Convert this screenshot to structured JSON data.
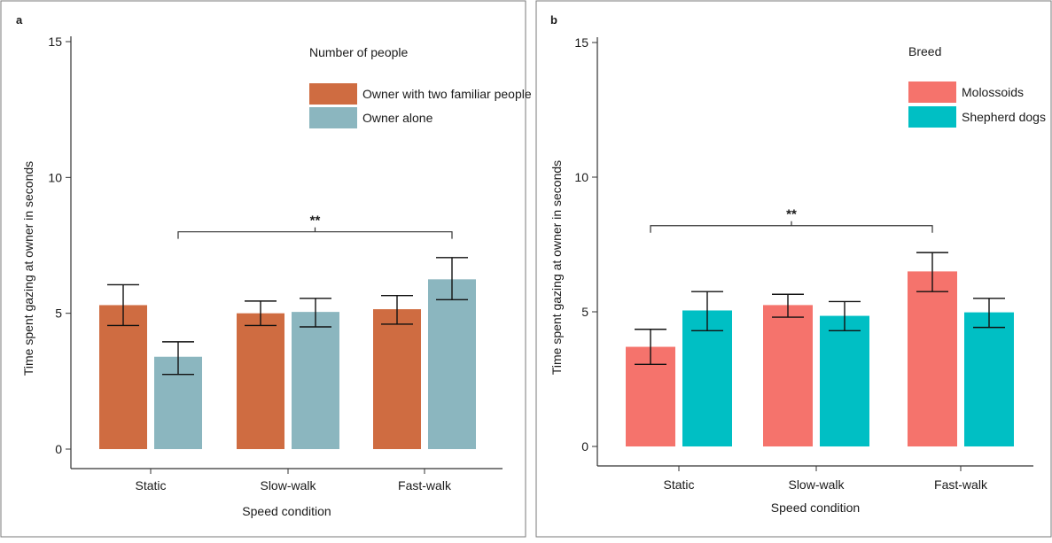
{
  "chart_data": [
    {
      "type": "bar",
      "panel_label": "a",
      "categories": [
        "Static",
        "Slow-walk",
        "Fast-walk"
      ],
      "xlabel": "Speed condition",
      "ylabel": "Time spent gazing at owner in seconds",
      "ylim": [
        0,
        15
      ],
      "yticks": [
        0,
        5,
        10,
        15
      ],
      "legend_title": "Number of people",
      "legend_position": "top-right",
      "series": [
        {
          "name": "Owner with two familiar people",
          "color": "#cf6c41",
          "values": [
            5.3,
            5.0,
            5.15
          ],
          "error_low": [
            4.55,
            4.55,
            4.6
          ],
          "error_high": [
            6.05,
            5.45,
            5.65
          ]
        },
        {
          "name": "Owner alone",
          "color": "#8bb6bf",
          "values": [
            3.4,
            5.05,
            6.25
          ],
          "error_low": [
            2.75,
            4.5,
            5.5
          ],
          "error_high": [
            3.95,
            5.55,
            7.05
          ]
        }
      ],
      "significance": [
        {
          "label": "**",
          "from": {
            "category": 0,
            "series": 1
          },
          "to": {
            "category": 2,
            "series": 1
          },
          "y": 8.0
        }
      ]
    },
    {
      "type": "bar",
      "panel_label": "b",
      "categories": [
        "Static",
        "Slow-walk",
        "Fast-walk"
      ],
      "xlabel": "Speed condition",
      "ylabel": "Time spent gazing at owner in seconds",
      "ylim": [
        0,
        15
      ],
      "yticks": [
        0,
        5,
        10,
        15
      ],
      "legend_title": "Breed",
      "legend_position": "top-right",
      "series": [
        {
          "name": "Molossoids",
          "color": "#f5736c",
          "values": [
            3.7,
            5.25,
            6.5
          ],
          "error_low": [
            3.05,
            4.8,
            5.75
          ],
          "error_high": [
            4.35,
            5.65,
            7.2
          ]
        },
        {
          "name": "Shepherd dogs",
          "color": "#00bfc4",
          "values": [
            5.05,
            4.85,
            4.98
          ],
          "error_low": [
            4.3,
            4.3,
            4.42
          ],
          "error_high": [
            5.75,
            5.38,
            5.5
          ]
        }
      ],
      "significance": [
        {
          "label": "**",
          "from": {
            "category": 0,
            "series": 0
          },
          "to": {
            "category": 2,
            "series": 0
          },
          "y": 8.2
        }
      ]
    }
  ]
}
